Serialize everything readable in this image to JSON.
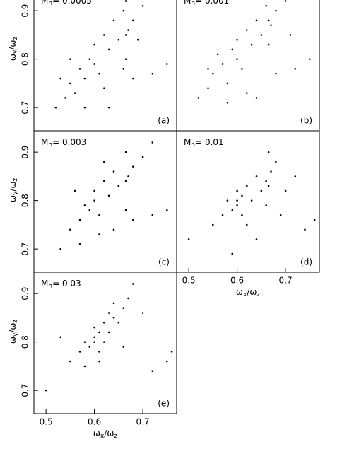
{
  "chart_data": [
    {
      "type": "scatter",
      "title": [
        "M",
        "h",
        "= 0.0005"
      ],
      "panel_label": "(a)",
      "ylabel": [
        "ω",
        "y",
        "/ω",
        "z"
      ],
      "xlim": [
        0.475,
        0.77
      ],
      "ylim": [
        0.652,
        0.944
      ],
      "yticks": [
        0.7,
        0.8,
        0.9
      ],
      "x": [
        0.52,
        0.54,
        0.55,
        0.56,
        0.57,
        0.58,
        0.59,
        0.6,
        0.6,
        0.61,
        0.62,
        0.63,
        0.64,
        0.65,
        0.66,
        0.665,
        0.665,
        0.665,
        0.67,
        0.68,
        0.69,
        0.7,
        0.72,
        0.58,
        0.62,
        0.55,
        0.63,
        0.68,
        0.72,
        0.75,
        0.53,
        0.66
      ],
      "y": [
        0.7,
        0.72,
        0.75,
        0.73,
        0.78,
        0.76,
        0.8,
        0.79,
        0.83,
        0.77,
        0.85,
        0.82,
        0.88,
        0.84,
        0.9,
        0.8,
        0.85,
        0.92,
        0.86,
        0.88,
        0.84,
        0.91,
        0.93,
        0.7,
        0.74,
        0.8,
        0.7,
        0.76,
        0.77,
        0.79,
        0.76,
        0.78
      ]
    },
    {
      "type": "scatter",
      "title": [
        "M",
        "h",
        "= 0.001"
      ],
      "panel_label": "(b)",
      "xlim": [
        0.475,
        0.77
      ],
      "ylim": [
        0.652,
        0.944
      ],
      "x": [
        0.52,
        0.54,
        0.55,
        0.57,
        0.58,
        0.59,
        0.6,
        0.61,
        0.62,
        0.63,
        0.64,
        0.65,
        0.66,
        0.665,
        0.665,
        0.67,
        0.68,
        0.7,
        0.71,
        0.73,
        0.58,
        0.62,
        0.56,
        0.64,
        0.68,
        0.72,
        0.75,
        0.54,
        0.6
      ],
      "y": [
        0.72,
        0.74,
        0.77,
        0.79,
        0.75,
        0.82,
        0.8,
        0.78,
        0.86,
        0.83,
        0.88,
        0.85,
        0.91,
        0.83,
        0.88,
        0.87,
        0.9,
        0.92,
        0.85,
        0.94,
        0.71,
        0.73,
        0.81,
        0.72,
        0.77,
        0.78,
        0.8,
        0.78,
        0.84
      ]
    },
    {
      "type": "scatter",
      "title": [
        "M",
        "h",
        "= 0.003"
      ],
      "panel_label": "(c)",
      "ylabel": [
        "ω",
        "y",
        "/ω",
        "z"
      ],
      "xlim": [
        0.475,
        0.77
      ],
      "ylim": [
        0.652,
        0.944
      ],
      "yticks": [
        0.7,
        0.8,
        0.9
      ],
      "x": [
        0.53,
        0.55,
        0.57,
        0.58,
        0.59,
        0.6,
        0.6,
        0.61,
        0.62,
        0.63,
        0.64,
        0.65,
        0.665,
        0.665,
        0.665,
        0.67,
        0.68,
        0.7,
        0.72,
        0.57,
        0.61,
        0.64,
        0.68,
        0.72,
        0.75,
        0.56,
        0.62
      ],
      "y": [
        0.7,
        0.74,
        0.76,
        0.79,
        0.78,
        0.8,
        0.82,
        0.77,
        0.84,
        0.81,
        0.86,
        0.83,
        0.78,
        0.84,
        0.9,
        0.85,
        0.87,
        0.89,
        0.92,
        0.71,
        0.73,
        0.74,
        0.76,
        0.77,
        0.78,
        0.82,
        0.88
      ]
    },
    {
      "type": "scatter",
      "title": [
        "M",
        "h",
        "= 0.01"
      ],
      "panel_label": "(d)",
      "xlabel": [
        "ω",
        "x",
        "/ω",
        "z"
      ],
      "xlim": [
        0.475,
        0.77
      ],
      "ylim": [
        0.652,
        0.944
      ],
      "xticks": [
        0.5,
        0.6,
        0.7
      ],
      "x": [
        0.5,
        0.55,
        0.57,
        0.58,
        0.59,
        0.6,
        0.6,
        0.6,
        0.61,
        0.61,
        0.62,
        0.63,
        0.64,
        0.65,
        0.66,
        0.665,
        0.665,
        0.67,
        0.68,
        0.7,
        0.72,
        0.59,
        0.62,
        0.64,
        0.66,
        0.69,
        0.74,
        0.76
      ],
      "y": [
        0.72,
        0.75,
        0.77,
        0.8,
        0.78,
        0.79,
        0.8,
        0.82,
        0.77,
        0.81,
        0.83,
        0.8,
        0.85,
        0.82,
        0.84,
        0.83,
        0.9,
        0.86,
        0.88,
        0.82,
        0.85,
        0.69,
        0.75,
        0.72,
        0.79,
        0.77,
        0.74,
        0.76
      ]
    },
    {
      "type": "scatter",
      "title": [
        "M",
        "h",
        "= 0.03"
      ],
      "panel_label": "(e)",
      "ylabel": [
        "ω",
        "y",
        "/ω",
        "z"
      ],
      "xlabel": [
        "ω",
        "x",
        "/ω",
        "z"
      ],
      "xlim": [
        0.475,
        0.77
      ],
      "ylim": [
        0.652,
        0.944
      ],
      "xticks": [
        0.5,
        0.6,
        0.7
      ],
      "yticks": [
        0.7,
        0.8,
        0.9
      ],
      "x": [
        0.5,
        0.55,
        0.57,
        0.58,
        0.59,
        0.6,
        0.6,
        0.6,
        0.61,
        0.61,
        0.62,
        0.62,
        0.63,
        0.63,
        0.64,
        0.64,
        0.65,
        0.66,
        0.67,
        0.68,
        0.7,
        0.58,
        0.61,
        0.66,
        0.72,
        0.75,
        0.76,
        0.53
      ],
      "y": [
        0.7,
        0.76,
        0.78,
        0.8,
        0.79,
        0.8,
        0.81,
        0.83,
        0.82,
        0.78,
        0.84,
        0.8,
        0.86,
        0.82,
        0.85,
        0.88,
        0.84,
        0.87,
        0.89,
        0.92,
        0.86,
        0.75,
        0.76,
        0.79,
        0.74,
        0.76,
        0.78,
        0.81
      ]
    }
  ]
}
